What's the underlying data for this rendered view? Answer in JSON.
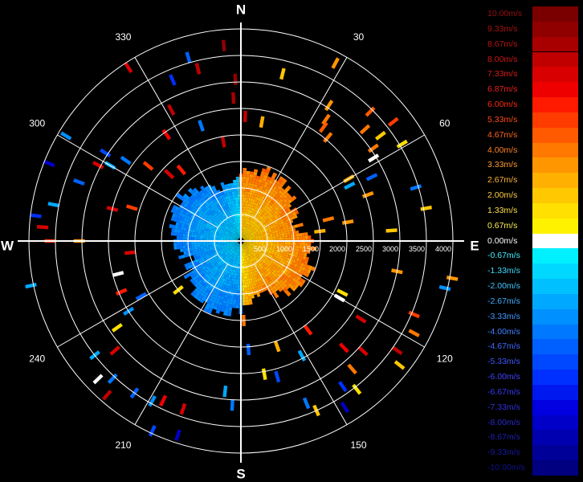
{
  "chart_data": {
    "type": "radar-ppi",
    "description_visible": false,
    "directions": {
      "north": "N",
      "east": "E",
      "south": "S",
      "west": "W"
    },
    "azimuth_labels": [
      {
        "deg": 30,
        "text": "30"
      },
      {
        "deg": 60,
        "text": "60"
      },
      {
        "deg": 120,
        "text": "120"
      },
      {
        "deg": 150,
        "text": "150"
      },
      {
        "deg": 210,
        "text": "210"
      },
      {
        "deg": 240,
        "text": "240"
      },
      {
        "deg": 300,
        "text": "300"
      },
      {
        "deg": 330,
        "text": "330"
      }
    ],
    "range_labels": [
      {
        "value": 500,
        "text": "500"
      },
      {
        "value": 1000,
        "text": "1000"
      },
      {
        "value": 1500,
        "text": "1500"
      },
      {
        "value": 2000,
        "text": "2000"
      },
      {
        "value": 2500,
        "text": "2500"
      },
      {
        "value": 3000,
        "text": "3000"
      },
      {
        "value": 3500,
        "text": "3500"
      },
      {
        "value": 4000,
        "text": "4000"
      }
    ],
    "range_max": 4000,
    "range_rings_every": 500,
    "spokes_every_deg": 30,
    "velocity_scale": [
      {
        "label": "10.00m/s",
        "value": 10.0,
        "color": "#7a0000",
        "label_color": "#9a1010"
      },
      {
        "label": "9.33m/s",
        "value": 9.33,
        "color": "#900000",
        "label_color": "#a81212"
      },
      {
        "label": "8.67m/s",
        "value": 8.67,
        "color": "#a80000",
        "label_color": "#b81414"
      },
      {
        "label": "8.00m/s",
        "value": 8.0,
        "color": "#c00000",
        "label_color": "#cc1616"
      },
      {
        "label": "7.33m/s",
        "value": 7.33,
        "color": "#d80000",
        "label_color": "#dd1a1a"
      },
      {
        "label": "6.87m/s",
        "value": 6.87,
        "color": "#ee0000",
        "label_color": "#ee2020"
      },
      {
        "label": "6.00m/s",
        "value": 6.0,
        "color": "#ff1a00",
        "label_color": "#ff2a10"
      },
      {
        "label": "5.33m/s",
        "value": 5.33,
        "color": "#ff3c00",
        "label_color": "#ff4a18"
      },
      {
        "label": "4.67m/s",
        "value": 4.67,
        "color": "#ff5a00",
        "label_color": "#ff6420"
      },
      {
        "label": "4.00m/s",
        "value": 4.0,
        "color": "#ff7800",
        "label_color": "#ff8028"
      },
      {
        "label": "3.33m/s",
        "value": 3.33,
        "color": "#ff9600",
        "label_color": "#ff9c30"
      },
      {
        "label": "2.67m/s",
        "value": 2.67,
        "color": "#ffb000",
        "label_color": "#ffb438"
      },
      {
        "label": "2.00m/s",
        "value": 2.0,
        "color": "#ffc800",
        "label_color": "#ffcc40"
      },
      {
        "label": "1.33m/s",
        "value": 1.33,
        "color": "#ffe000",
        "label_color": "#ffe048"
      },
      {
        "label": "0.67m/s",
        "value": 0.67,
        "color": "#fff200",
        "label_color": "#fff050"
      },
      {
        "label": "0.00m/s",
        "value": 0.0,
        "color": "#ffffff",
        "label_color": "#ffffff"
      },
      {
        "label": "-0.67m/s",
        "value": -0.67,
        "color": "#00f0ff",
        "label_color": "#40f0ff"
      },
      {
        "label": "-1.33m/s",
        "value": -1.33,
        "color": "#00d8ff",
        "label_color": "#40daff"
      },
      {
        "label": "-2.00m/s",
        "value": -2.0,
        "color": "#00c0ff",
        "label_color": "#40c4ff"
      },
      {
        "label": "-2.67m/s",
        "value": -2.67,
        "color": "#00a8ff",
        "label_color": "#40aeff"
      },
      {
        "label": "-3.33m/s",
        "value": -3.33,
        "color": "#0090ff",
        "label_color": "#4098ff"
      },
      {
        "label": "-4.00m/s",
        "value": -4.0,
        "color": "#0078ff",
        "label_color": "#4082ff"
      },
      {
        "label": "-4.67m/s",
        "value": -4.67,
        "color": "#0060ff",
        "label_color": "#406cff"
      },
      {
        "label": "-5.33m/s",
        "value": -5.33,
        "color": "#0048ff",
        "label_color": "#4058ff"
      },
      {
        "label": "-6.00m/s",
        "value": -6.0,
        "color": "#0030ff",
        "label_color": "#4044ff"
      },
      {
        "label": "-6.67m/s",
        "value": -6.67,
        "color": "#0018f0",
        "label_color": "#3838f0"
      },
      {
        "label": "-7.33m/s",
        "value": -7.33,
        "color": "#0000e0",
        "label_color": "#3030e0"
      },
      {
        "label": "-8.00m/s",
        "value": -8.0,
        "color": "#0000c8",
        "label_color": "#2828c8"
      },
      {
        "label": "-8.67m/s",
        "value": -8.67,
        "color": "#0000b0",
        "label_color": "#2020b0"
      },
      {
        "label": "-9.33m/s",
        "value": -9.33,
        "color": "#000098",
        "label_color": "#1818a0"
      },
      {
        "label": "-10.00m/s",
        "value": -10.0,
        "color": "#000080",
        "label_color": "#101090"
      }
    ],
    "gates": [
      {
        "az": 28,
        "r": 3800,
        "v": 3.3
      },
      {
        "az": 14,
        "r": 3250,
        "v": 2.0
      },
      {
        "az": 355,
        "r": 3700,
        "v": 9.0
      },
      {
        "az": 344,
        "r": 3600,
        "v": -5.0
      },
      {
        "az": 346,
        "r": 3350,
        "v": 8.3
      },
      {
        "az": 358,
        "r": 3050,
        "v": 9.3
      },
      {
        "az": 357,
        "r": 2700,
        "v": 8.5
      },
      {
        "az": 2,
        "r": 2350,
        "v": 8.0
      },
      {
        "az": 10,
        "r": 2280,
        "v": 2.7
      },
      {
        "az": 33,
        "r": 3050,
        "v": 3.3
      },
      {
        "az": 35,
        "r": 2800,
        "v": 4.0
      },
      {
        "az": 36,
        "r": 2650,
        "v": 4.7
      },
      {
        "az": 40,
        "r": 2550,
        "v": 4.0
      },
      {
        "az": 45,
        "r": 3450,
        "v": 4.7
      },
      {
        "az": 48,
        "r": 3150,
        "v": 4.0
      },
      {
        "az": 52,
        "r": 3650,
        "v": 5.3
      },
      {
        "az": 53,
        "r": 3300,
        "v": 2.0
      },
      {
        "az": 55,
        "r": 3050,
        "v": 4.0
      },
      {
        "az": 58,
        "r": 2950,
        "v": 0.0
      },
      {
        "az": 59,
        "r": 3550,
        "v": 1.3
      },
      {
        "az": 60,
        "r": 2350,
        "v": 2.7
      },
      {
        "az": 63,
        "r": 2300,
        "v": -3.0
      },
      {
        "az": 64,
        "r": 2750,
        "v": -4.5
      },
      {
        "az": 70,
        "r": 2550,
        "v": 3.3
      },
      {
        "az": 73,
        "r": 3450,
        "v": -4.0
      },
      {
        "az": 76,
        "r": 1700,
        "v": 4.0
      },
      {
        "az": 80,
        "r": 2050,
        "v": 3.3
      },
      {
        "az": 83,
        "r": 1500,
        "v": 2.7
      },
      {
        "az": 86,
        "r": 2850,
        "v": 2.0
      },
      {
        "az": 80,
        "r": 3550,
        "v": 2.0
      },
      {
        "az": 100,
        "r": 4050,
        "v": 3.3
      },
      {
        "az": 103,
        "r": 3950,
        "v": -3.3
      },
      {
        "az": 101,
        "r": 3000,
        "v": 3.3
      },
      {
        "az": 117,
        "r": 2150,
        "v": 1.3
      },
      {
        "az": 120,
        "r": 2150,
        "v": 0.0
      },
      {
        "az": 123,
        "r": 2700,
        "v": 7.3
      },
      {
        "az": 113,
        "r": 3550,
        "v": 5.3
      },
      {
        "az": 118,
        "r": 3700,
        "v": 4.0
      },
      {
        "az": 125,
        "r": 3600,
        "v": 8.3
      },
      {
        "az": 128,
        "r": 3800,
        "v": 2.0
      },
      {
        "az": 132,
        "r": 3100,
        "v": 7.3
      },
      {
        "az": 136,
        "r": 2800,
        "v": 7.0
      },
      {
        "az": 139,
        "r": 3200,
        "v": 4.0
      },
      {
        "az": 142,
        "r": 3550,
        "v": 1.3
      },
      {
        "az": 145,
        "r": 3350,
        "v": -6.0
      },
      {
        "az": 148,
        "r": 3700,
        "v": -8.0
      },
      {
        "az": 143,
        "r": 2100,
        "v": 6.0
      },
      {
        "az": 152,
        "r": 2450,
        "v": -3.0
      },
      {
        "az": 156,
        "r": 3500,
        "v": 2.0
      },
      {
        "az": 158,
        "r": 3300,
        "v": -4.0
      },
      {
        "az": 161,
        "r": 2100,
        "v": 2.7
      },
      {
        "az": 165,
        "r": 2650,
        "v": -5.3
      },
      {
        "az": 170,
        "r": 2550,
        "v": 1.3
      },
      {
        "az": 176,
        "r": 2050,
        "v": -5.0
      },
      {
        "az": 178,
        "r": 1500,
        "v": 4.0
      },
      {
        "az": 183,
        "r": 3100,
        "v": -4.0
      },
      {
        "az": 186,
        "r": 2850,
        "v": -3.0
      },
      {
        "az": 198,
        "r": 3850,
        "v": -8.0
      },
      {
        "az": 205,
        "r": 3950,
        "v": -5.3
      },
      {
        "az": 199,
        "r": 3350,
        "v": 7.3
      },
      {
        "az": 206,
        "r": 3350,
        "v": 7.0
      },
      {
        "az": 209,
        "r": 3450,
        "v": -3.3
      },
      {
        "az": 215,
        "r": 3500,
        "v": -5.0
      },
      {
        "az": 221,
        "r": 3850,
        "v": 8.0
      },
      {
        "az": 223,
        "r": 3550,
        "v": -4.0
      },
      {
        "az": 226,
        "r": 3750,
        "v": 0.0
      },
      {
        "az": 229,
        "r": 3150,
        "v": 7.3
      },
      {
        "az": 232,
        "r": 3500,
        "v": -3.0
      },
      {
        "az": 235,
        "r": 2850,
        "v": 1.3
      },
      {
        "az": 238,
        "r": 2500,
        "v": -3.3
      },
      {
        "az": 232,
        "r": 1500,
        "v": 1.3
      },
      {
        "az": 241,
        "r": 2150,
        "v": -5.0
      },
      {
        "az": 247,
        "r": 2450,
        "v": 6.0
      },
      {
        "az": 255,
        "r": 2400,
        "v": 0.0
      },
      {
        "az": 264,
        "r": 2100,
        "v": 7.3
      },
      {
        "az": 270,
        "r": 3600,
        "v": 5.3
      },
      {
        "az": 270,
        "r": 3050,
        "v": 3.3
      },
      {
        "az": 258,
        "r": 4050,
        "v": -3.0
      },
      {
        "az": 274,
        "r": 3750,
        "v": 7.3
      },
      {
        "az": 277,
        "r": 3900,
        "v": -6.0
      },
      {
        "az": 281,
        "r": 3600,
        "v": -3.0
      },
      {
        "az": 284,
        "r": 2500,
        "v": 7.3
      },
      {
        "az": 287,
        "r": 2150,
        "v": 5.3
      },
      {
        "az": 290,
        "r": 3250,
        "v": -5.0
      },
      {
        "az": 292,
        "r": 3900,
        "v": -8.0
      },
      {
        "az": 298,
        "r": 3050,
        "v": 7.3
      },
      {
        "az": 300,
        "r": 2850,
        "v": -2.7
      },
      {
        "az": 303,
        "r": 3050,
        "v": -5.3
      },
      {
        "az": 305,
        "r": 2650,
        "v": -4.0
      },
      {
        "az": 301,
        "r": 3850,
        "v": -3.3
      },
      {
        "az": 309,
        "r": 2250,
        "v": 5.3
      },
      {
        "az": 313,
        "r": 1850,
        "v": 7.3
      },
      {
        "az": 320,
        "r": 1750,
        "v": 6.0
      },
      {
        "az": 325,
        "r": 2450,
        "v": 7.0
      },
      {
        "az": 332,
        "r": 2800,
        "v": 8.3
      },
      {
        "az": 337,
        "r": 3300,
        "v": -6.0
      },
      {
        "az": 327,
        "r": 3900,
        "v": 7.3
      },
      {
        "az": 341,
        "r": 2300,
        "v": -4.0
      },
      {
        "az": 350,
        "r": 1900,
        "v": 8.0
      }
    ]
  }
}
